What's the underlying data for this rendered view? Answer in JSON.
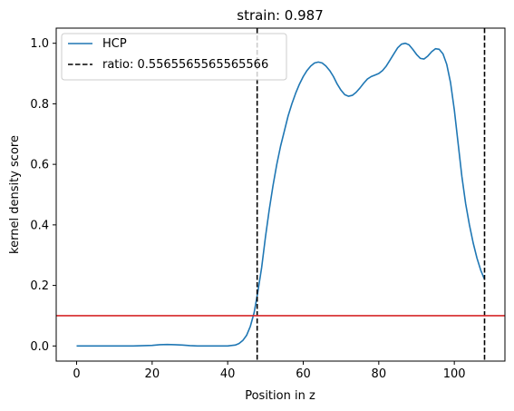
{
  "chart_data": {
    "type": "line",
    "title": "strain: 0.987",
    "xlabel": "Position in z",
    "ylabel": "kernel density score",
    "xlim": [
      -5.4,
      113.4
    ],
    "ylim": [
      -0.05,
      1.05
    ],
    "xticks": [
      0,
      20,
      40,
      60,
      80,
      100
    ],
    "yticks": [
      0.0,
      0.2,
      0.4,
      0.6,
      0.8,
      1.0
    ],
    "xtick_labels": [
      "0",
      "20",
      "40",
      "60",
      "80",
      "100"
    ],
    "ytick_labels": [
      "0.0",
      "0.2",
      "0.4",
      "0.6",
      "0.8",
      "1.0"
    ],
    "grid": false,
    "legend_placement": "top-left",
    "series": [
      {
        "name": "HCP",
        "color": "#1f77b4",
        "style": "solid",
        "x": [
          0,
          5,
          10,
          15,
          20,
          22,
          24,
          26,
          28,
          30,
          32,
          34,
          36,
          38,
          40,
          42,
          43,
          44,
          45,
          46,
          47,
          48,
          49,
          50,
          51,
          52,
          53,
          54,
          55,
          56,
          57,
          58,
          59,
          60,
          61,
          62,
          63,
          64,
          65,
          66,
          67,
          68,
          69,
          70,
          71,
          72,
          73,
          74,
          75,
          76,
          77,
          78,
          79,
          80,
          81,
          82,
          83,
          84,
          85,
          86,
          87,
          88,
          89,
          90,
          91,
          92,
          93,
          94,
          95,
          96,
          97,
          98,
          99,
          100,
          101,
          102,
          103,
          104,
          105,
          106,
          107,
          108
        ],
        "y": [
          0.0,
          0.0,
          0.0,
          0.0,
          0.002,
          0.004,
          0.005,
          0.004,
          0.003,
          0.001,
          0.0,
          0.0,
          0.0,
          0.0,
          0.0,
          0.003,
          0.008,
          0.018,
          0.035,
          0.065,
          0.11,
          0.18,
          0.26,
          0.36,
          0.45,
          0.53,
          0.6,
          0.66,
          0.71,
          0.76,
          0.8,
          0.835,
          0.865,
          0.89,
          0.91,
          0.925,
          0.935,
          0.938,
          0.935,
          0.925,
          0.91,
          0.89,
          0.865,
          0.845,
          0.83,
          0.825,
          0.828,
          0.838,
          0.852,
          0.868,
          0.882,
          0.89,
          0.895,
          0.9,
          0.91,
          0.925,
          0.945,
          0.965,
          0.985,
          0.997,
          1.0,
          0.995,
          0.98,
          0.963,
          0.95,
          0.948,
          0.958,
          0.972,
          0.982,
          0.98,
          0.965,
          0.93,
          0.87,
          0.78,
          0.67,
          0.56,
          0.47,
          0.4,
          0.34,
          0.29,
          0.25,
          0.22
        ]
      }
    ],
    "vlines": [
      {
        "label": "ratio: 0.5565565565565566",
        "x": 47.8,
        "color": "#000000",
        "style": "dashed",
        "in_legend": true
      },
      {
        "x": 108,
        "color": "#000000",
        "style": "dashed",
        "in_legend": false
      }
    ],
    "hlines": [
      {
        "y": 0.1,
        "color": "#d62728",
        "style": "solid"
      }
    ]
  }
}
